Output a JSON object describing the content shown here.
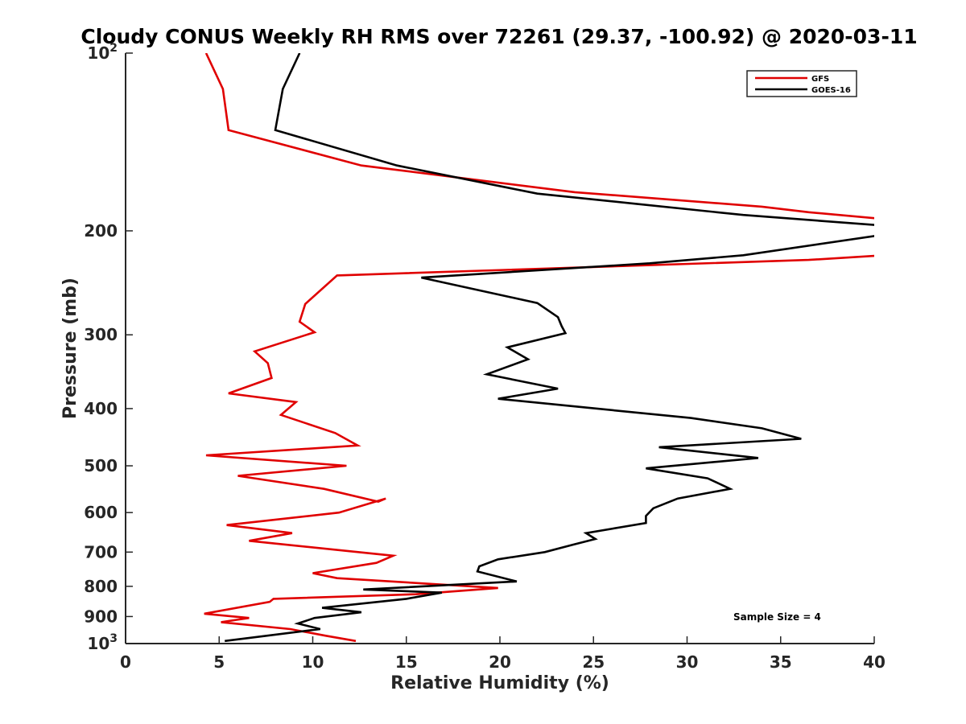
{
  "chart_data": {
    "type": "line",
    "title": "Cloudy CONUS Weekly RH RMS over 72261 (29.37, -100.92) @ 2020-03-11",
    "xlabel": "Relative Humidity (%)",
    "ylabel": "Pressure (mb)",
    "xlim": [
      0,
      40
    ],
    "ylim": [
      100,
      1000
    ],
    "y_scale": "log",
    "y_reversed": true,
    "x_ticks": [
      0,
      5,
      10,
      15,
      20,
      25,
      30,
      35,
      40
    ],
    "x_tick_labels": [
      "0",
      "5",
      "10",
      "15",
      "20",
      "25",
      "30",
      "35",
      "40"
    ],
    "y_ticks": [
      200,
      300,
      400,
      500,
      600,
      700,
      800,
      900
    ],
    "y_tick_labels": [
      "200",
      "300",
      "400",
      "500",
      "600",
      "700",
      "800",
      "900"
    ],
    "y_log_ticks": [
      {
        "value": 100,
        "base": "10",
        "exp": "2"
      },
      {
        "value": 1000,
        "base": "10",
        "exp": "3"
      }
    ],
    "legend_position": "top-right",
    "annotation": "Sample Size = 4",
    "series": [
      {
        "name": "GFS",
        "color": "#e00000",
        "x": [
          4.3,
          5.2,
          5.5,
          12.6,
          24.0,
          34.0,
          36.5,
          40.5,
          40.5,
          36.5,
          11.3,
          9.6,
          9.3,
          10.1,
          6.9,
          7.6,
          7.8,
          5.5,
          9.1,
          8.3,
          11.2,
          12.4,
          4.3,
          11.8,
          6.0,
          10.6,
          13.5,
          13.9,
          11.4,
          5.4,
          8.9,
          6.6,
          14.3,
          13.4,
          10.0,
          11.3,
          19.9,
          15.5,
          7.9,
          7.7,
          4.2,
          6.6,
          5.1,
          8.8,
          10.7,
          12.3
        ],
        "y": [
          100,
          115,
          135,
          155,
          172,
          182,
          186,
          191,
          220,
          224,
          238,
          266,
          285,
          297,
          320,
          335,
          355,
          377,
          390,
          410,
          440,
          462,
          480,
          500,
          520,
          547,
          575,
          568,
          600,
          630,
          650,
          670,
          710,
          730,
          760,
          775,
          805,
          825,
          840,
          850,
          890,
          905,
          920,
          945,
          970,
          990
        ]
      },
      {
        "name": "GOES-16",
        "color": "#000000",
        "x": [
          9.3,
          8.4,
          8.0,
          14.5,
          22.0,
          33.0,
          40.5,
          40.5,
          33.0,
          28.0,
          15.8,
          22.0,
          23.1,
          23.3,
          23.5,
          20.4,
          21.5,
          19.3,
          23.1,
          19.9,
          30.2,
          34.0,
          36.1,
          28.5,
          33.8,
          27.8,
          31.1,
          32.3,
          29.5,
          28.2,
          27.8,
          27.8,
          24.6,
          25.1,
          23.9,
          22.4,
          19.9,
          18.9,
          18.8,
          20.9,
          12.7,
          16.9,
          15.0,
          10.5,
          12.6,
          10.1,
          9.2,
          10.4,
          5.3
        ],
        "y": [
          100,
          115,
          135,
          155,
          173,
          188,
          196,
          203,
          220,
          227,
          240,
          265,
          280,
          290,
          298,
          315,
          330,
          350,
          370,
          385,
          415,
          432,
          450,
          465,
          485,
          505,
          525,
          547,
          568,
          590,
          608,
          625,
          650,
          665,
          680,
          700,
          720,
          740,
          755,
          785,
          810,
          820,
          840,
          870,
          885,
          905,
          925,
          945,
          990
        ]
      }
    ]
  }
}
